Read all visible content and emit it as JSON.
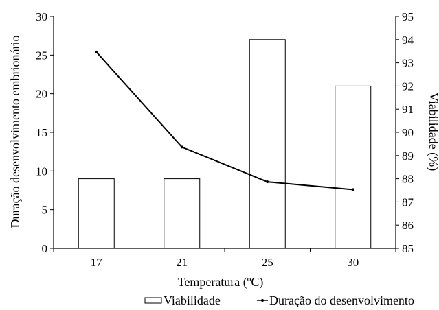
{
  "chart_data": {
    "type": "bar",
    "categories": [
      "17",
      "21",
      "25",
      "30"
    ],
    "series": [
      {
        "name": "Viabilidade",
        "type": "bar",
        "axis": "right",
        "values": [
          88,
          88,
          94,
          92
        ]
      },
      {
        "name": "Duração do desenvolvimento",
        "type": "line",
        "axis": "left",
        "values": [
          25.4,
          13.1,
          8.6,
          7.6
        ]
      }
    ],
    "xlabel": "Temperatura (ºC)",
    "ylabel_left": "Duração desenvolvimento embrionário",
    "ylabel_right": "Viabilidade (%)",
    "ylim_left": [
      0,
      30
    ],
    "yticks_left": [
      "0",
      "5",
      "10",
      "15",
      "20",
      "25",
      "30"
    ],
    "ylim_right": [
      85,
      95
    ],
    "yticks_right": [
      "85",
      "86",
      "87",
      "88",
      "89",
      "90",
      "91",
      "92",
      "93",
      "94",
      "95"
    ],
    "grid": false,
    "legend_position": "bottom"
  }
}
